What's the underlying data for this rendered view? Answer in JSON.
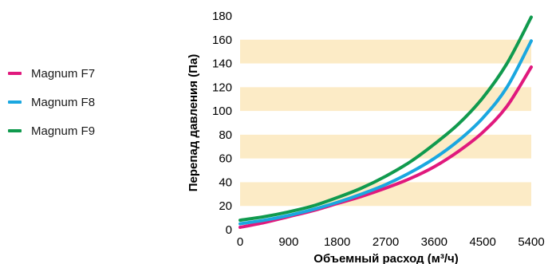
{
  "chart_data": {
    "type": "line",
    "title": "",
    "xlabel": "Объемный расход (м³/ч)",
    "ylabel": "Перепад давления (Па)",
    "xlim": [
      0,
      5400
    ],
    "ylim": [
      0,
      180
    ],
    "x_ticks": [
      "0",
      "900",
      "1800",
      "2700",
      "3600",
      "4500",
      "5400"
    ],
    "y_ticks": [
      "0",
      "20",
      "40",
      "60",
      "80",
      "100",
      "120",
      "140",
      "160",
      "180"
    ],
    "grid": "alternating horizontal bands",
    "band_color": "#fcebc6",
    "legend_position": "left",
    "series": [
      {
        "name": "Magnum F7",
        "color": "#e0197d",
        "x": [
          0,
          450,
          900,
          1350,
          1800,
          2250,
          2700,
          3150,
          3600,
          4050,
          4500,
          4950,
          5400
        ],
        "y": [
          2,
          6,
          11,
          16,
          22,
          28,
          35,
          43,
          53,
          66,
          82,
          104,
          137
        ]
      },
      {
        "name": "Magnum F8",
        "color": "#1aa7e0",
        "x": [
          0,
          450,
          900,
          1350,
          1800,
          2250,
          2700,
          3150,
          3600,
          4050,
          4500,
          4950,
          5400
        ],
        "y": [
          5,
          8,
          12,
          17,
          23,
          30,
          38,
          48,
          60,
          75,
          94,
          120,
          159
        ]
      },
      {
        "name": "Magnum F9",
        "color": "#109a4e",
        "x": [
          0,
          450,
          900,
          1350,
          1800,
          2250,
          2700,
          3150,
          3600,
          4050,
          4500,
          4950,
          5400
        ],
        "y": [
          8,
          11,
          15,
          20,
          27,
          35,
          45,
          57,
          72,
          89,
          111,
          140,
          179
        ]
      }
    ]
  }
}
